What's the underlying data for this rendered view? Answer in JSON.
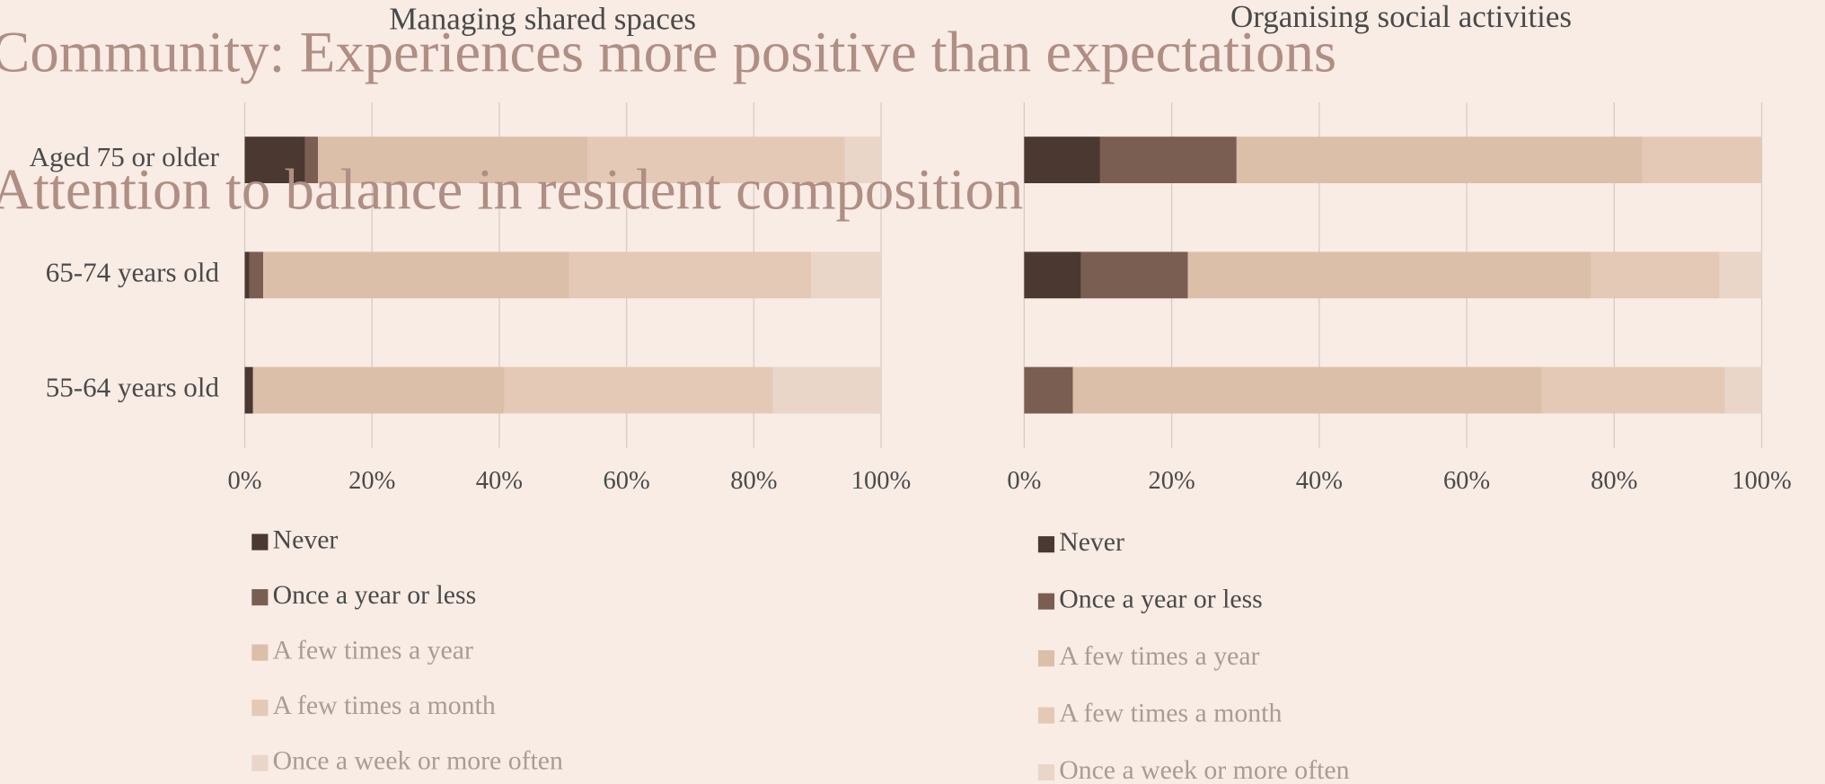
{
  "chart_data": [
    {
      "type": "stacked-bar-horizontal",
      "title": "Community: Experiences more positive than expectations",
      "subtitle": "Managing shared spaces",
      "categories": [
        "Aged 75 or older",
        "65-74 years old",
        "55-64 years old"
      ],
      "series": [
        {
          "name": "Never",
          "color": "#4a3831",
          "values": [
            9.5,
            0.7,
            1.3
          ]
        },
        {
          "name": "Once a year or less",
          "color": "#7b5e52",
          "values": [
            2,
            2.2,
            0
          ]
        },
        {
          "name": "A few times a year",
          "color": "#dcbfa9",
          "values": [
            42.4,
            48.1,
            39.5
          ]
        },
        {
          "name": "A few times a month",
          "color": "#e4c9b7",
          "values": [
            40.4,
            38,
            42.2
          ]
        },
        {
          "name": "Once a week or more often",
          "color": "#ead6c9",
          "values": [
            5.7,
            11,
            17
          ]
        }
      ],
      "xlim": [
        0,
        100
      ],
      "xticks": [
        {
          "value": 0,
          "label": "0%"
        },
        {
          "value": 20,
          "label": "20%"
        },
        {
          "value": 40,
          "label": "40%"
        },
        {
          "value": 60,
          "label": "60%"
        },
        {
          "value": 80,
          "label": "80%"
        },
        {
          "value": 100,
          "label": "100%"
        }
      ],
      "grid": true
    },
    {
      "type": "stacked-bar-horizontal",
      "title": "Attention to balance in resident composition",
      "subtitle": "Organising social activities",
      "categories": [
        null,
        null,
        null
      ],
      "series": [
        {
          "name": "Never",
          "color": "#4a3831",
          "values": [
            10.3,
            7.7,
            0
          ]
        },
        {
          "name": "Once a year or less",
          "color": "#7b5e52",
          "values": [
            18.5,
            14.5,
            6.6
          ]
        },
        {
          "name": "A few times a year",
          "color": "#dcbfa9",
          "values": [
            55,
            54.7,
            63.6
          ]
        },
        {
          "name": "A few times a month",
          "color": "#e4c9b7",
          "values": [
            16.2,
            17.4,
            24.8
          ]
        },
        {
          "name": "Once a week or more often",
          "color": "#ead6c9",
          "values": [
            0,
            5.7,
            5
          ]
        }
      ],
      "xlim": [
        0,
        100
      ],
      "xticks": [
        {
          "value": 0,
          "label": "0%"
        },
        {
          "value": 20,
          "label": "20%"
        },
        {
          "value": 40,
          "label": "40%"
        },
        {
          "value": 60,
          "label": "60%"
        },
        {
          "value": 80,
          "label": "80%"
        },
        {
          "value": 100,
          "label": "100%"
        }
      ],
      "grid": true
    }
  ]
}
